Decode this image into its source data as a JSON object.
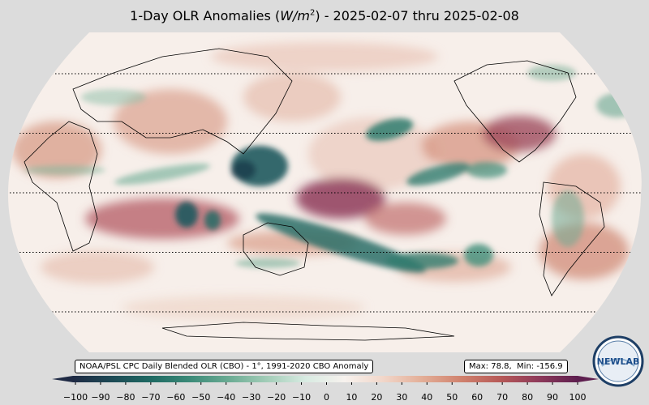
{
  "title": {
    "prefix": "1-Day OLR Anomalies (",
    "unit_var": "W/m",
    "unit_exp": "2",
    "suffix": ") - 2025-02-07 thru 2025-02-08"
  },
  "source_label": "NOAA/PSL CPC Daily Blended OLR (CBO) - 1°, 1991-2020 CBO Anomaly",
  "stats": {
    "max": "78.8",
    "min": "-156.9",
    "max_label": "Max:",
    "min_label": "Min:"
  },
  "colorbar": {
    "ticks": [
      "−100",
      "−90",
      "−80",
      "−70",
      "−60",
      "−50",
      "−40",
      "−30",
      "−20",
      "−10",
      "0",
      "10",
      "20",
      "30",
      "40",
      "50",
      "60",
      "70",
      "80",
      "90",
      "100"
    ],
    "range": [
      -100,
      100
    ],
    "colors": [
      "#1f2a44",
      "#1d4a55",
      "#1f6a63",
      "#3b8a78",
      "#6aab93",
      "#a3cdb8",
      "#d8ebe2",
      "#f7f2ee",
      "#f1d6c9",
      "#e3ae97",
      "#d0826e",
      "#b75a58",
      "#8e3a5a",
      "#5e1f4f"
    ]
  },
  "map": {
    "projection": "Robinson",
    "central_longitude": "180",
    "graticule_latitudes": [
      -60,
      -30,
      0,
      30,
      60
    ]
  },
  "logo": {
    "text": "NEWLAB"
  }
}
